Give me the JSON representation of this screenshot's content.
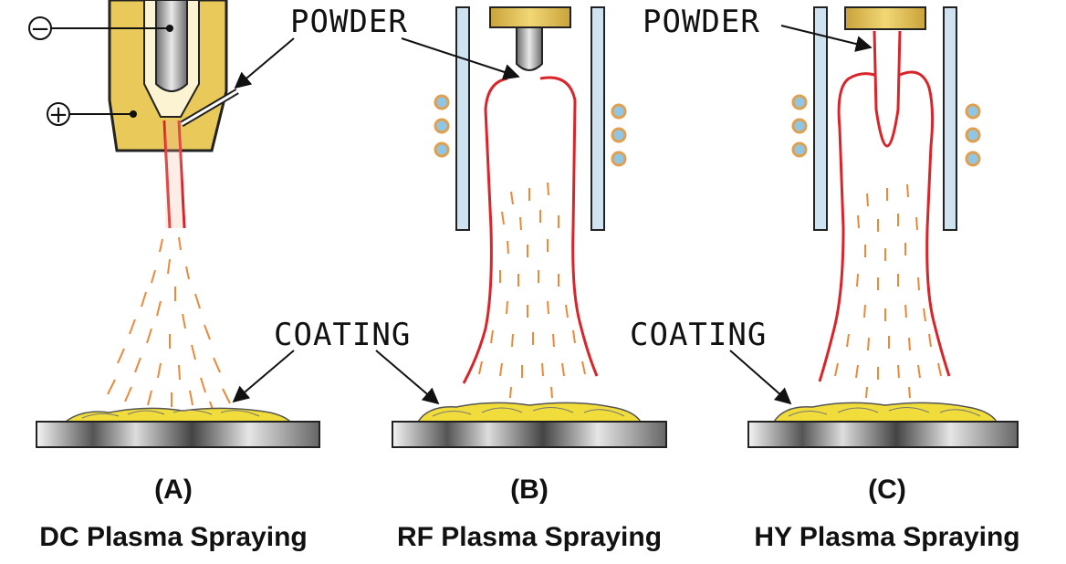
{
  "labels": {
    "powder": "POWDER",
    "coating": "COATING",
    "minus": "−",
    "plus": "+"
  },
  "panels": [
    {
      "letter": "(A)",
      "name": "DC Plasma Spraying"
    },
    {
      "letter": "(B)",
      "name": "RF Plasma Spraying"
    },
    {
      "letter": "(C)",
      "name": "HY Plasma Spraying"
    }
  ],
  "colors": {
    "torch_body": "#e8c95a",
    "plasma": "#d9242a",
    "particles": "#e98a3b",
    "coil": "#8fc6e6",
    "coil_ring": "#e0a050",
    "coating": "#f0dc3a",
    "tube": "#cfe2f0"
  }
}
